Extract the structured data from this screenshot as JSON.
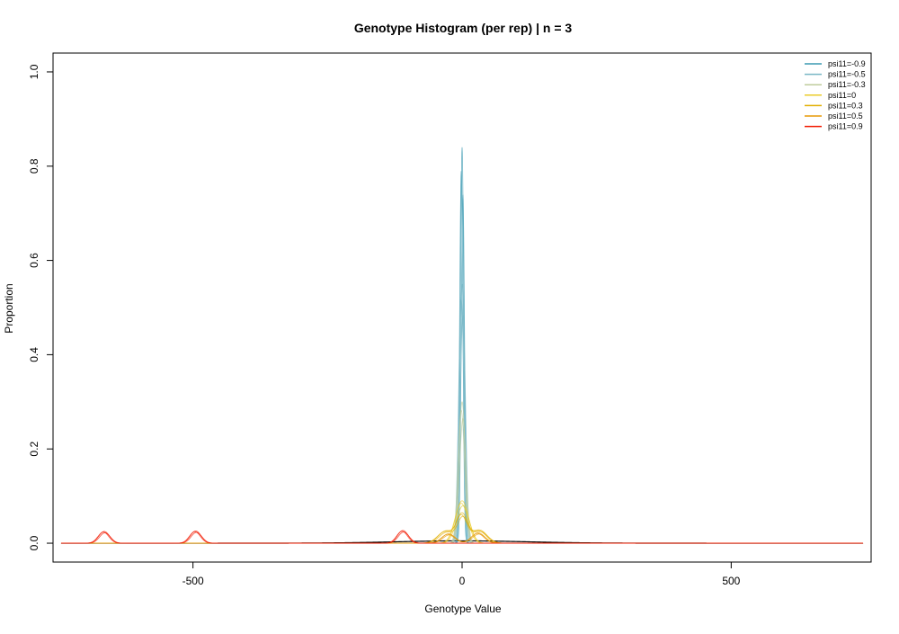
{
  "chart_data": {
    "type": "line",
    "title": "Genotype Histogram (per rep) | n = 3",
    "xlabel": "Genotype Value",
    "ylabel": "Proportion",
    "xlim": [
      -760,
      760
    ],
    "ylim": [
      -0.04,
      1.04
    ],
    "x_ticks": [
      -500,
      0,
      500
    ],
    "x_tick_labels": [
      "-500",
      "0",
      "500"
    ],
    "y_ticks": [
      0.0,
      0.2,
      0.4,
      0.6,
      0.8,
      1.0
    ],
    "y_tick_labels": [
      "0.0",
      "0.2",
      "0.4",
      "0.6",
      "0.8",
      "1.0"
    ],
    "grid": false,
    "legend_position": "top-right",
    "series": [
      {
        "name": "psi11=-0.9",
        "color": "#3b9ab2",
        "peaks": [
          {
            "x": 0,
            "y": 0.84,
            "width": 3
          }
        ]
      },
      {
        "name": "psi11=-0.5",
        "color": "#78b7c5",
        "peaks": [
          {
            "x": 0,
            "y": 0.55,
            "width": 5
          }
        ]
      },
      {
        "name": "psi11=-0.3",
        "color": "#bfcc9d",
        "peaks": [
          {
            "x": 0,
            "y": 0.3,
            "width": 6
          }
        ]
      },
      {
        "name": "psi11=0",
        "color": "#ebcc2a",
        "peaks": [
          {
            "x": 0,
            "y": 0.09,
            "width": 12
          }
        ]
      },
      {
        "name": "psi11=0.3",
        "color": "#e1af00",
        "peaks": [
          {
            "x": -30,
            "y": 0.026,
            "width": 14
          },
          {
            "x": 0,
            "y": 0.06,
            "width": 10
          },
          {
            "x": 32,
            "y": 0.028,
            "width": 14
          }
        ]
      },
      {
        "name": "psi11=0.5",
        "color": "#e79805",
        "peaks": [
          {
            "x": -25,
            "y": 0.02,
            "width": 12
          },
          {
            "x": 30,
            "y": 0.022,
            "width": 12
          }
        ]
      },
      {
        "name": "psi11=0.9",
        "color": "#f21a00",
        "peaks": [
          {
            "x": -665,
            "y": 0.025,
            "width": 10
          },
          {
            "x": -495,
            "y": 0.026,
            "width": 10
          },
          {
            "x": -110,
            "y": 0.027,
            "width": 10
          }
        ]
      }
    ],
    "baseline": {
      "color": "#000000",
      "peak_x": 0,
      "peak_y": 0.005,
      "width": 120
    }
  }
}
